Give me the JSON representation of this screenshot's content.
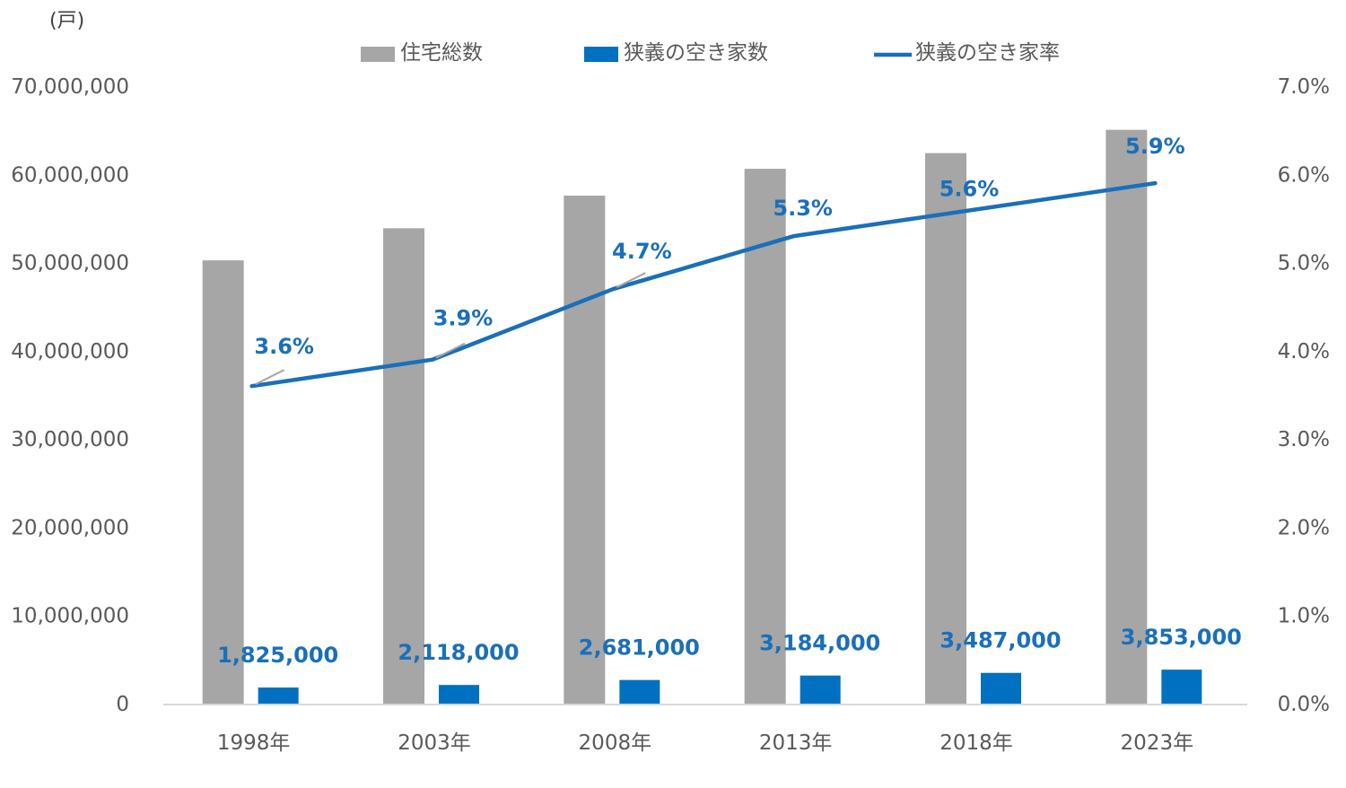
{
  "chart_data": {
    "type": "bar",
    "unit_label": "(戸)",
    "categories": [
      "1998年",
      "2003年",
      "2008年",
      "2013年",
      "2018年",
      "2023年"
    ],
    "series": [
      {
        "name": "住宅総数",
        "type": "bar",
        "axis": "left",
        "color": "#a6a6a6",
        "values": [
          50250000,
          53890000,
          57590000,
          60630000,
          62410000,
          65050000
        ]
      },
      {
        "name": "狭義の空き家数",
        "type": "bar",
        "axis": "left",
        "color": "#0070c0",
        "values": [
          1825000,
          2118000,
          2681000,
          3184000,
          3487000,
          3853000
        ],
        "data_labels": [
          "1,825,000",
          "2,118,000",
          "2,681,000",
          "3,184,000",
          "3,487,000",
          "3,853,000"
        ]
      },
      {
        "name": "狭義の空き家率",
        "type": "line",
        "axis": "right",
        "color": "#1a6fba",
        "values": [
          3.6,
          3.9,
          4.7,
          5.3,
          5.6,
          5.9
        ],
        "data_labels": [
          "3.6%",
          "3.9%",
          "4.7%",
          "5.3%",
          "5.6%",
          "5.9%"
        ]
      }
    ],
    "y_left": {
      "ylim": [
        0,
        70000000
      ],
      "ticks": [
        0,
        10000000,
        20000000,
        30000000,
        40000000,
        50000000,
        60000000,
        70000000
      ],
      "tick_labels": [
        "0",
        "10,000,000",
        "20,000,000",
        "30,000,000",
        "40,000,000",
        "50,000,000",
        "60,000,000",
        "70,000,000"
      ]
    },
    "y_right": {
      "ylim": [
        0,
        7
      ],
      "ticks": [
        0,
        1,
        2,
        3,
        4,
        5,
        6,
        7
      ],
      "tick_labels": [
        "0.0%",
        "1.0%",
        "2.0%",
        "3.0%",
        "4.0%",
        "5.0%",
        "6.0%",
        "7.0%"
      ]
    },
    "grid": false,
    "legend_position": "top"
  }
}
